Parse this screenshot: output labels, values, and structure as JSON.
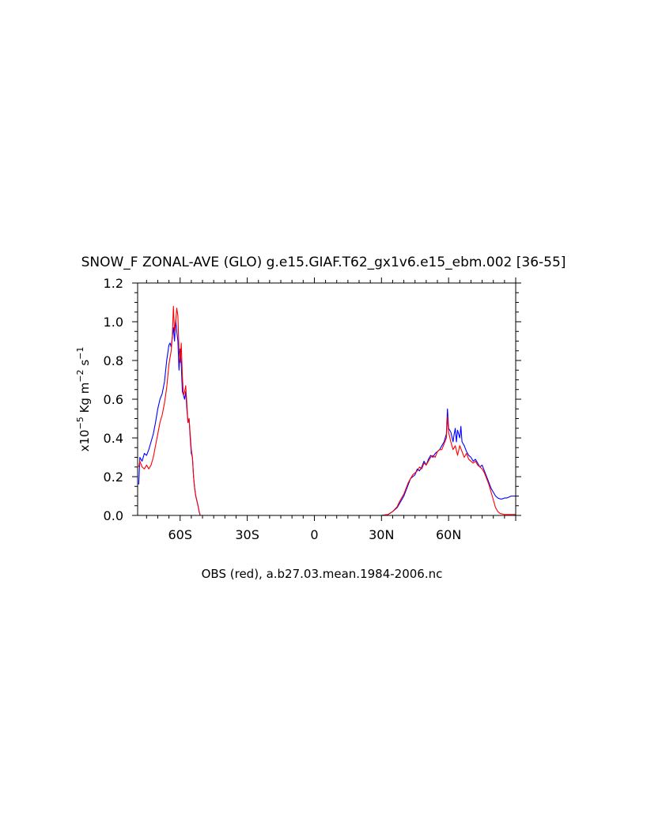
{
  "chart_data": {
    "type": "line",
    "title": "SNOW_F ZONAL-AVE (GLO) g.e15.GIAF.T62_gx1v6.e15_ebm.002 [36-55]",
    "xlabel": "OBS (red), a.b27.03.mean.1984-2006.nc",
    "ylabel": "x10-5 Kg m-2 s-1",
    "ylabel_parts": {
      "pre": "x10",
      "exp1": "−5",
      "mid1": " Kg m",
      "exp2": "−2",
      "mid2": " s",
      "exp3": "−1"
    },
    "xlim": [
      -79,
      90
    ],
    "ylim": [
      0,
      1.2
    ],
    "x_ticks": [
      {
        "value": -60,
        "label": "60S"
      },
      {
        "value": -30,
        "label": "30S"
      },
      {
        "value": 0,
        "label": "0"
      },
      {
        "value": 30,
        "label": "30N"
      },
      {
        "value": 60,
        "label": "60N"
      }
    ],
    "y_ticks": [
      {
        "value": 0.0,
        "label": "0.0"
      },
      {
        "value": 0.2,
        "label": "0.2"
      },
      {
        "value": 0.4,
        "label": "0.4"
      },
      {
        "value": 0.6,
        "label": "0.6"
      },
      {
        "value": 0.8,
        "label": "0.8"
      },
      {
        "value": 1.0,
        "label": "1.0"
      },
      {
        "value": 1.2,
        "label": "1.2"
      }
    ],
    "series": [
      {
        "color": "#0000ff",
        "points": [
          [
            -78.5,
            0.16
          ],
          [
            -78,
            0.3
          ],
          [
            -77,
            0.28
          ],
          [
            -76,
            0.32
          ],
          [
            -75,
            0.31
          ],
          [
            -74,
            0.34
          ],
          [
            -73,
            0.38
          ],
          [
            -72,
            0.42
          ],
          [
            -71,
            0.48
          ],
          [
            -70,
            0.55
          ],
          [
            -69,
            0.6
          ],
          [
            -68,
            0.63
          ],
          [
            -67,
            0.69
          ],
          [
            -66,
            0.8
          ],
          [
            -65,
            0.88
          ],
          [
            -64.5,
            0.89
          ],
          [
            -64,
            0.87
          ],
          [
            -63,
            0.97
          ],
          [
            -62.5,
            0.9
          ],
          [
            -62,
            1.01
          ],
          [
            -61.5,
            0.95
          ],
          [
            -61,
            0.9
          ],
          [
            -60.5,
            0.75
          ],
          [
            -60,
            0.86
          ],
          [
            -59.5,
            0.78
          ],
          [
            -59,
            0.64
          ],
          [
            -58,
            0.6
          ],
          [
            -57.5,
            0.64
          ],
          [
            -57,
            0.55
          ],
          [
            -56.5,
            0.48
          ],
          [
            -56,
            0.5
          ],
          [
            -55.5,
            0.4
          ],
          [
            -55,
            0.32
          ],
          [
            -54.5,
            0.3
          ],
          [
            -54,
            0.2
          ],
          [
            -53.5,
            0.14
          ],
          [
            -53,
            0.1
          ],
          [
            -52,
            0.05
          ],
          [
            -51.5,
            0.02
          ],
          [
            -51,
            0.0
          ],
          [
            -40,
            0.0
          ],
          [
            -20,
            0.0
          ],
          [
            0,
            0.0
          ],
          [
            20,
            0.0
          ],
          [
            30,
            0.0
          ],
          [
            33,
            0.005
          ],
          [
            35,
            0.02
          ],
          [
            37,
            0.04
          ],
          [
            38,
            0.06
          ],
          [
            40,
            0.1
          ],
          [
            41,
            0.13
          ],
          [
            42,
            0.16
          ],
          [
            43,
            0.19
          ],
          [
            44,
            0.2
          ],
          [
            45,
            0.21
          ],
          [
            46,
            0.24
          ],
          [
            47,
            0.23
          ],
          [
            48,
            0.25
          ],
          [
            49,
            0.28
          ],
          [
            50,
            0.26
          ],
          [
            51,
            0.29
          ],
          [
            52,
            0.31
          ],
          [
            53,
            0.3
          ],
          [
            54,
            0.32
          ],
          [
            55,
            0.33
          ],
          [
            56,
            0.34
          ],
          [
            57,
            0.36
          ],
          [
            58,
            0.38
          ],
          [
            59,
            0.42
          ],
          [
            59.5,
            0.55
          ],
          [
            60,
            0.45
          ],
          [
            61,
            0.43
          ],
          [
            62,
            0.38
          ],
          [
            62.5,
            0.42
          ],
          [
            63,
            0.45
          ],
          [
            63.5,
            0.38
          ],
          [
            64,
            0.44
          ],
          [
            65,
            0.4
          ],
          [
            65.5,
            0.46
          ],
          [
            66,
            0.38
          ],
          [
            67,
            0.36
          ],
          [
            68,
            0.33
          ],
          [
            69,
            0.31
          ],
          [
            70,
            0.3
          ],
          [
            71,
            0.28
          ],
          [
            72,
            0.29
          ],
          [
            73,
            0.27
          ],
          [
            74,
            0.25
          ],
          [
            75,
            0.26
          ],
          [
            76,
            0.23
          ],
          [
            77,
            0.2
          ],
          [
            78,
            0.17
          ],
          [
            79,
            0.14
          ],
          [
            80,
            0.12
          ],
          [
            81,
            0.1
          ],
          [
            82,
            0.09
          ],
          [
            83,
            0.085
          ],
          [
            84,
            0.085
          ],
          [
            85,
            0.09
          ],
          [
            86,
            0.09
          ],
          [
            87,
            0.095
          ],
          [
            88,
            0.1
          ],
          [
            90,
            0.1
          ]
        ]
      },
      {
        "color": "#ff0000",
        "points": [
          [
            -78.5,
            0.25
          ],
          [
            -78,
            0.28
          ],
          [
            -77,
            0.25
          ],
          [
            -76,
            0.24
          ],
          [
            -75,
            0.26
          ],
          [
            -74,
            0.24
          ],
          [
            -73,
            0.26
          ],
          [
            -72,
            0.3
          ],
          [
            -71,
            0.36
          ],
          [
            -70,
            0.42
          ],
          [
            -69,
            0.48
          ],
          [
            -68,
            0.52
          ],
          [
            -67,
            0.58
          ],
          [
            -66,
            0.66
          ],
          [
            -65,
            0.78
          ],
          [
            -64,
            0.85
          ],
          [
            -63.5,
            0.92
          ],
          [
            -63,
            1.08
          ],
          [
            -62.5,
            0.95
          ],
          [
            -62,
            1.0
          ],
          [
            -61.5,
            1.07
          ],
          [
            -61,
            1.03
          ],
          [
            -60.5,
            0.85
          ],
          [
            -60,
            0.79
          ],
          [
            -59.5,
            0.89
          ],
          [
            -59,
            0.72
          ],
          [
            -58.5,
            0.62
          ],
          [
            -58,
            0.64
          ],
          [
            -57.5,
            0.67
          ],
          [
            -57,
            0.58
          ],
          [
            -56.5,
            0.48
          ],
          [
            -56,
            0.5
          ],
          [
            -55.5,
            0.42
          ],
          [
            -55,
            0.34
          ],
          [
            -54.5,
            0.3
          ],
          [
            -54,
            0.2
          ],
          [
            -53.5,
            0.14
          ],
          [
            -53,
            0.1
          ],
          [
            -52,
            0.05
          ],
          [
            -51.5,
            0.02
          ],
          [
            -51,
            0.0
          ],
          [
            -40,
            0.0
          ],
          [
            -20,
            0.0
          ],
          [
            0,
            0.0
          ],
          [
            20,
            0.0
          ],
          [
            30,
            0.0
          ],
          [
            33,
            0.005
          ],
          [
            35,
            0.02
          ],
          [
            37,
            0.045
          ],
          [
            38,
            0.07
          ],
          [
            40,
            0.11
          ],
          [
            41,
            0.14
          ],
          [
            42,
            0.17
          ],
          [
            43,
            0.19
          ],
          [
            44,
            0.21
          ],
          [
            45,
            0.22
          ],
          [
            46,
            0.23
          ],
          [
            47,
            0.25
          ],
          [
            48,
            0.24
          ],
          [
            49,
            0.27
          ],
          [
            50,
            0.26
          ],
          [
            51,
            0.28
          ],
          [
            52,
            0.3
          ],
          [
            53,
            0.31
          ],
          [
            54,
            0.3
          ],
          [
            55,
            0.33
          ],
          [
            56,
            0.34
          ],
          [
            57,
            0.34
          ],
          [
            58,
            0.37
          ],
          [
            59,
            0.4
          ],
          [
            59.5,
            0.51
          ],
          [
            60,
            0.43
          ],
          [
            61,
            0.38
          ],
          [
            62,
            0.34
          ],
          [
            63,
            0.36
          ],
          [
            64,
            0.31
          ],
          [
            65,
            0.36
          ],
          [
            66,
            0.33
          ],
          [
            67,
            0.3
          ],
          [
            68,
            0.32
          ],
          [
            69,
            0.29
          ],
          [
            70,
            0.28
          ],
          [
            71,
            0.27
          ],
          [
            72,
            0.28
          ],
          [
            73,
            0.26
          ],
          [
            74,
            0.25
          ],
          [
            75,
            0.24
          ],
          [
            76,
            0.22
          ],
          [
            77,
            0.19
          ],
          [
            78,
            0.16
          ],
          [
            79,
            0.12
          ],
          [
            80,
            0.08
          ],
          [
            81,
            0.04
          ],
          [
            82,
            0.02
          ],
          [
            83,
            0.01
          ],
          [
            85,
            0.005
          ],
          [
            88,
            0.005
          ],
          [
            90,
            0.005
          ]
        ]
      }
    ]
  }
}
